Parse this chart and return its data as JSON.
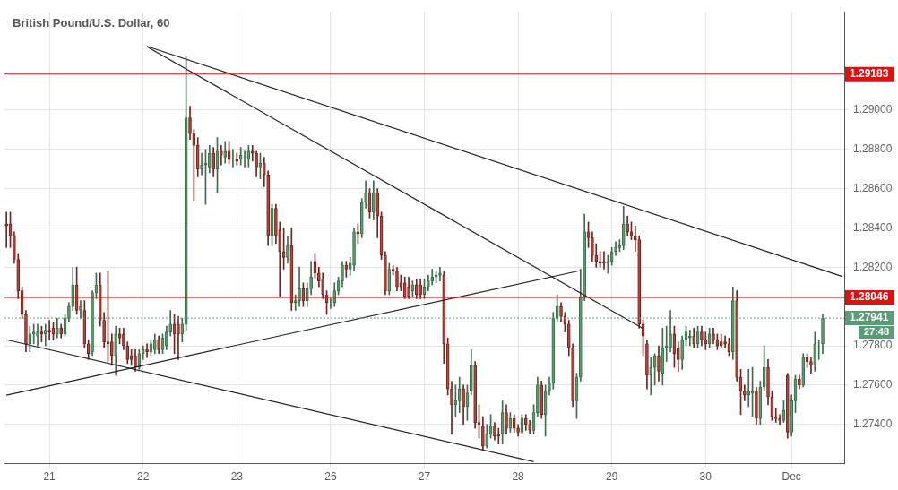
{
  "chart_data": {
    "type": "candlestick",
    "title": "British Pound/U.S. Dollar, 60",
    "categories": [
      null,
      null,
      null,
      null,
      null,
      null,
      null,
      null,
      null,
      null,
      null,
      "21",
      null,
      null,
      null,
      null,
      null,
      null,
      null,
      null,
      null,
      null,
      null,
      null,
      null,
      null,
      null,
      null,
      null,
      null,
      null,
      null,
      null,
      null,
      null,
      "22",
      null,
      null,
      null,
      null,
      null,
      null,
      null,
      null,
      null,
      null,
      null,
      null,
      null,
      null,
      null,
      null,
      null,
      null,
      null,
      null,
      null,
      null,
      null,
      "23",
      null,
      null,
      null,
      null,
      null,
      null,
      null,
      null,
      null,
      null,
      null,
      null,
      null,
      null,
      null,
      null,
      null,
      null,
      null,
      null,
      null,
      null,
      null,
      "26",
      null,
      null,
      null,
      null,
      null,
      null,
      null,
      null,
      null,
      null,
      null,
      null,
      null,
      null,
      null,
      null,
      null,
      null,
      null,
      null,
      null,
      null,
      null,
      "27",
      null,
      null,
      null,
      null,
      null,
      null,
      null,
      null,
      null,
      null,
      null,
      null,
      null,
      null,
      null,
      null,
      null,
      null,
      null,
      null,
      null,
      null,
      null,
      "28",
      null,
      null,
      null,
      null,
      null,
      null,
      null,
      null,
      null,
      null,
      null,
      null,
      null,
      null,
      null,
      null,
      null,
      null,
      null,
      null,
      null,
      null,
      null,
      "29",
      null,
      null,
      null,
      null,
      null,
      null,
      null,
      null,
      null,
      null,
      null,
      null,
      null,
      null,
      null,
      null,
      null,
      null,
      null,
      null,
      null,
      null,
      null,
      "30",
      null,
      null,
      null,
      null,
      null,
      null,
      null,
      null,
      null,
      null,
      null,
      null,
      null,
      null,
      null,
      null,
      null,
      null,
      null,
      null,
      null,
      "Dec",
      null,
      null,
      null,
      null,
      null,
      null,
      null,
      null,
      null,
      null,
      null,
      null,
      null
    ],
    "ohlc": [
      [
        1.2842,
        1.2848,
        1.283,
        1.2841
      ],
      [
        1.2842,
        1.2848,
        1.283,
        1.2836
      ],
      [
        1.2836,
        1.2838,
        1.2822,
        1.2824
      ],
      [
        1.2824,
        1.2827,
        1.2804,
        1.2808
      ],
      [
        1.2808,
        1.281,
        1.2794,
        1.2796
      ],
      [
        1.2796,
        1.2798,
        1.2777,
        1.2781
      ],
      [
        1.2781,
        1.279,
        1.2777,
        1.2786
      ],
      [
        1.2786,
        1.2791,
        1.2781,
        1.2787
      ],
      [
        1.2785,
        1.2791,
        1.278,
        1.2787
      ],
      [
        1.2787,
        1.279,
        1.2782,
        1.2786
      ],
      [
        1.2786,
        1.2791,
        1.278,
        1.2788
      ],
      [
        1.2788,
        1.2793,
        1.2783,
        1.2787
      ],
      [
        1.2789,
        1.2792,
        1.2783,
        1.2786
      ],
      [
        1.2786,
        1.2794,
        1.2784,
        1.2789
      ],
      [
        1.2789,
        1.2791,
        1.2784,
        1.2786
      ],
      [
        1.2786,
        1.2796,
        1.2785,
        1.2794
      ],
      [
        1.2794,
        1.2802,
        1.2792,
        1.28
      ],
      [
        1.28,
        1.282,
        1.2798,
        1.2811
      ],
      [
        1.2811,
        1.282,
        1.2796,
        1.2798
      ],
      [
        1.2798,
        1.2803,
        1.2794,
        1.28
      ],
      [
        1.2798,
        1.2803,
        1.2779,
        1.2781
      ],
      [
        1.2781,
        1.2783,
        1.2773,
        1.2776
      ],
      [
        1.2777,
        1.2808,
        1.2775,
        1.2807
      ],
      [
        1.2807,
        1.2817,
        1.2804,
        1.2811
      ],
      [
        1.2811,
        1.2817,
        1.279,
        1.2793
      ],
      [
        1.2793,
        1.2797,
        1.2779,
        1.2782
      ],
      [
        1.2782,
        1.2818,
        1.2772,
        1.2781
      ],
      [
        1.2782,
        1.2786,
        1.277,
        1.2775
      ],
      [
        1.2775,
        1.279,
        1.2765,
        1.2786
      ],
      [
        1.2786,
        1.2789,
        1.2781,
        1.2784
      ],
      [
        1.2786,
        1.2789,
        1.2778,
        1.278
      ],
      [
        1.278,
        1.2782,
        1.2771,
        1.2773
      ],
      [
        1.2775,
        1.2778,
        1.277,
        1.2773
      ],
      [
        1.2775,
        1.2778,
        1.2767,
        1.2769
      ],
      [
        1.2769,
        1.2778,
        1.2768,
        1.2776
      ],
      [
        1.2776,
        1.278,
        1.2773,
        1.2778
      ],
      [
        1.2778,
        1.2781,
        1.2774,
        1.2777
      ],
      [
        1.2777,
        1.2783,
        1.2775,
        1.2781
      ],
      [
        1.2778,
        1.2786,
        1.2776,
        1.2783
      ],
      [
        1.2783,
        1.2785,
        1.2776,
        1.2778
      ],
      [
        1.2778,
        1.2786,
        1.2776,
        1.2784
      ],
      [
        1.278,
        1.279,
        1.2778,
        1.2787
      ],
      [
        1.2787,
        1.2798,
        1.2785,
        1.2791
      ],
      [
        1.2791,
        1.2796,
        1.2776,
        1.2786
      ],
      [
        1.2791,
        1.2795,
        1.2773,
        1.2786
      ],
      [
        1.2786,
        1.2794,
        1.2782,
        1.2791
      ],
      [
        1.2791,
        1.2927,
        1.2788,
        1.2896
      ],
      [
        1.2896,
        1.2902,
        1.2885,
        1.2888
      ],
      [
        1.2888,
        1.289,
        1.2854,
        1.2882
      ],
      [
        1.2882,
        1.2886,
        1.2866,
        1.287
      ],
      [
        1.287,
        1.2878,
        1.2867,
        1.2872
      ],
      [
        1.2872,
        1.288,
        1.2852,
        1.2873
      ],
      [
        1.2871,
        1.2882,
        1.2868,
        1.2878
      ],
      [
        1.2878,
        1.2881,
        1.2866,
        1.287
      ],
      [
        1.287,
        1.2886,
        1.2858,
        1.2879
      ],
      [
        1.2879,
        1.2882,
        1.2872,
        1.2877
      ],
      [
        1.2876,
        1.2884,
        1.2873,
        1.2879
      ],
      [
        1.2879,
        1.2884,
        1.2873,
        1.2875
      ],
      [
        1.2875,
        1.288,
        1.2871,
        1.2875
      ],
      [
        1.2875,
        1.2878,
        1.2872,
        1.2874
      ],
      [
        1.2875,
        1.2881,
        1.2872,
        1.2877
      ],
      [
        1.2876,
        1.2879,
        1.2871,
        1.2876
      ],
      [
        1.2875,
        1.2882,
        1.2871,
        1.2879
      ],
      [
        1.2879,
        1.2882,
        1.2874,
        1.2878
      ],
      [
        1.2878,
        1.2879,
        1.2866,
        1.2871
      ],
      [
        1.2871,
        1.2878,
        1.2865,
        1.2873
      ],
      [
        1.2873,
        1.2876,
        1.2861,
        1.2867
      ],
      [
        1.2867,
        1.2869,
        1.2831,
        1.2836
      ],
      [
        1.2836,
        1.2852,
        1.2831,
        1.285
      ],
      [
        1.285,
        1.2852,
        1.2832,
        1.2836
      ],
      [
        1.2839,
        1.2843,
        1.2805,
        1.2828
      ],
      [
        1.2828,
        1.284,
        1.2819,
        1.2825
      ],
      [
        1.2825,
        1.2836,
        1.2822,
        1.2831
      ],
      [
        1.2831,
        1.284,
        1.2798,
        1.2802
      ],
      [
        1.2802,
        1.2806,
        1.2798,
        1.2803
      ],
      [
        1.2803,
        1.282,
        1.28,
        1.2809
      ],
      [
        1.2809,
        1.2812,
        1.28,
        1.2803
      ],
      [
        1.2803,
        1.2812,
        1.28,
        1.2809
      ],
      [
        1.2809,
        1.2823,
        1.2806,
        1.2815
      ],
      [
        1.2823,
        1.2827,
        1.2814,
        1.2817
      ],
      [
        1.2817,
        1.282,
        1.281,
        1.2813
      ],
      [
        1.2814,
        1.2817,
        1.2804,
        1.2806
      ],
      [
        1.2806,
        1.2808,
        1.2796,
        1.2802
      ],
      [
        1.2802,
        1.2804,
        1.2799,
        1.2802
      ],
      [
        1.2802,
        1.2812,
        1.28,
        1.2808
      ],
      [
        1.2808,
        1.2815,
        1.2806,
        1.2813
      ],
      [
        1.2813,
        1.2823,
        1.281,
        1.2821
      ],
      [
        1.2821,
        1.2823,
        1.2815,
        1.2819
      ],
      [
        1.2819,
        1.2825,
        1.2816,
        1.2822
      ],
      [
        1.2821,
        1.284,
        1.2818,
        1.2838
      ],
      [
        1.2838,
        1.2842,
        1.2832,
        1.2837
      ],
      [
        1.2837,
        1.2855,
        1.2835,
        1.2853
      ],
      [
        1.2853,
        1.2864,
        1.285,
        1.2858
      ],
      [
        1.2858,
        1.286,
        1.2845,
        1.2848
      ],
      [
        1.2848,
        1.2864,
        1.2844,
        1.2858
      ],
      [
        1.2858,
        1.286,
        1.2835,
        1.2846
      ],
      [
        1.2846,
        1.2848,
        1.2824,
        1.2826
      ],
      [
        1.2826,
        1.2828,
        1.2806,
        1.2808
      ],
      [
        1.2808,
        1.2822,
        1.2806,
        1.2819
      ],
      [
        1.2819,
        1.2821,
        1.2816,
        1.2818
      ],
      [
        1.2818,
        1.282,
        1.2808,
        1.281
      ],
      [
        1.2812,
        1.2816,
        1.2808,
        1.281
      ],
      [
        1.2812,
        1.2815,
        1.2804,
        1.2805
      ],
      [
        1.281,
        1.2815,
        1.2804,
        1.2805
      ],
      [
        1.2808,
        1.2813,
        1.2805,
        1.2811
      ],
      [
        1.2811,
        1.2814,
        1.2804,
        1.2806
      ],
      [
        1.2811,
        1.2814,
        1.2804,
        1.2806
      ],
      [
        1.2806,
        1.2814,
        1.2804,
        1.281
      ],
      [
        1.281,
        1.2816,
        1.2808,
        1.2813
      ],
      [
        1.2813,
        1.2819,
        1.2811,
        1.2815
      ],
      [
        1.2815,
        1.2818,
        1.2812,
        1.2816
      ],
      [
        1.2816,
        1.282,
        1.2813,
        1.2817
      ],
      [
        1.2816,
        1.2818,
        1.2771,
        1.2781
      ],
      [
        1.2781,
        1.2784,
        1.2755,
        1.2758
      ],
      [
        1.2758,
        1.2762,
        1.2735,
        1.275
      ],
      [
        1.275,
        1.276,
        1.2744,
        1.2752
      ],
      [
        1.2752,
        1.2764,
        1.2746,
        1.2758
      ],
      [
        1.2758,
        1.276,
        1.274,
        1.2749
      ],
      [
        1.2749,
        1.276,
        1.2742,
        1.2756
      ],
      [
        1.2757,
        1.2778,
        1.2755,
        1.277
      ],
      [
        1.277,
        1.2772,
        1.2738,
        1.2741
      ],
      [
        1.2741,
        1.275,
        1.2733,
        1.274
      ],
      [
        1.2739,
        1.2744,
        1.2727,
        1.2729
      ],
      [
        1.2729,
        1.274,
        1.2728,
        1.2735
      ],
      [
        1.2735,
        1.2745,
        1.2733,
        1.2739
      ],
      [
        1.2739,
        1.2741,
        1.2732,
        1.2734
      ],
      [
        1.2735,
        1.2738,
        1.273,
        1.2734
      ],
      [
        1.2735,
        1.2752,
        1.273,
        1.2746
      ],
      [
        1.2746,
        1.275,
        1.2735,
        1.2738
      ],
      [
        1.2738,
        1.2746,
        1.2736,
        1.2743
      ],
      [
        1.2743,
        1.2745,
        1.2736,
        1.2738
      ],
      [
        1.2738,
        1.274,
        1.2734,
        1.2736
      ],
      [
        1.2736,
        1.2745,
        1.2735,
        1.2743
      ],
      [
        1.2743,
        1.2745,
        1.2737,
        1.274
      ],
      [
        1.274,
        1.2742,
        1.2735,
        1.2737
      ],
      [
        1.2737,
        1.275,
        1.2735,
        1.2746
      ],
      [
        1.2746,
        1.2764,
        1.2744,
        1.276
      ],
      [
        1.276,
        1.2762,
        1.2743,
        1.2745
      ],
      [
        1.2745,
        1.276,
        1.2734,
        1.2757
      ],
      [
        1.2757,
        1.2764,
        1.2755,
        1.2761
      ],
      [
        1.2761,
        1.2797,
        1.2758,
        1.2794
      ],
      [
        1.2794,
        1.2806,
        1.2792,
        1.28
      ],
      [
        1.28,
        1.2802,
        1.2792,
        1.2795
      ],
      [
        1.2795,
        1.2797,
        1.2787,
        1.2791
      ],
      [
        1.2791,
        1.2793,
        1.2775,
        1.2779
      ],
      [
        1.2779,
        1.2781,
        1.2749,
        1.2752
      ],
      [
        1.2752,
        1.2766,
        1.2743,
        1.2764
      ],
      [
        1.2764,
        1.2819,
        1.2762,
        1.2805
      ],
      [
        1.2805,
        1.2847,
        1.2803,
        1.2838
      ],
      [
        1.2838,
        1.2843,
        1.283,
        1.2835
      ],
      [
        1.2835,
        1.2838,
        1.2823,
        1.2826
      ],
      [
        1.2826,
        1.2832,
        1.282,
        1.2823
      ],
      [
        1.2823,
        1.2828,
        1.282,
        1.2822
      ],
      [
        1.2823,
        1.2828,
        1.2819,
        1.2822
      ],
      [
        1.2822,
        1.2826,
        1.2817,
        1.2823
      ],
      [
        1.2823,
        1.283,
        1.2821,
        1.2828
      ],
      [
        1.2828,
        1.2833,
        1.2826,
        1.283
      ],
      [
        1.283,
        1.2834,
        1.2828,
        1.2831
      ],
      [
        1.2831,
        1.2851,
        1.2829,
        1.2842
      ],
      [
        1.2842,
        1.2846,
        1.2836,
        1.2838
      ],
      [
        1.2838,
        1.2843,
        1.2834,
        1.2836
      ],
      [
        1.2836,
        1.2841,
        1.2828,
        1.2834
      ],
      [
        1.2834,
        1.2836,
        1.2789,
        1.2791
      ],
      [
        1.2791,
        1.2793,
        1.2775,
        1.2785
      ],
      [
        1.2781,
        1.2783,
        1.2758,
        1.2765
      ],
      [
        1.2765,
        1.2774,
        1.2755,
        1.2769
      ],
      [
        1.2769,
        1.2776,
        1.276,
        1.2775
      ],
      [
        1.2775,
        1.278,
        1.2762,
        1.2767
      ],
      [
        1.2766,
        1.2789,
        1.276,
        1.2779
      ],
      [
        1.2779,
        1.279,
        1.2772,
        1.278
      ],
      [
        1.2779,
        1.2798,
        1.2777,
        1.2786
      ],
      [
        1.2786,
        1.279,
        1.2769,
        1.2776
      ],
      [
        1.2779,
        1.2782,
        1.2767,
        1.2773
      ],
      [
        1.2773,
        1.2785,
        1.2768,
        1.2783
      ],
      [
        1.2783,
        1.279,
        1.278,
        1.2787
      ],
      [
        1.2784,
        1.2788,
        1.278,
        1.2785
      ],
      [
        1.2785,
        1.2789,
        1.2779,
        1.2781
      ],
      [
        1.2781,
        1.279,
        1.2779,
        1.2787
      ],
      [
        1.2787,
        1.279,
        1.278,
        1.2783
      ],
      [
        1.2783,
        1.2787,
        1.2778,
        1.2781
      ],
      [
        1.2781,
        1.2789,
        1.2779,
        1.2786
      ],
      [
        1.2786,
        1.2789,
        1.2781,
        1.2783
      ],
      [
        1.2783,
        1.2786,
        1.2778,
        1.278
      ],
      [
        1.2782,
        1.2786,
        1.2779,
        1.278
      ],
      [
        1.2782,
        1.2785,
        1.2779,
        1.2781
      ],
      [
        1.2781,
        1.2784,
        1.2775,
        1.2777
      ],
      [
        1.2777,
        1.281,
        1.2773,
        1.2803
      ],
      [
        1.2803,
        1.2808,
        1.2762,
        1.2764
      ],
      [
        1.2764,
        1.2768,
        1.2745,
        1.2757
      ],
      [
        1.2757,
        1.276,
        1.2752,
        1.2755
      ],
      [
        1.2755,
        1.2768,
        1.2749,
        1.2757
      ],
      [
        1.2756,
        1.2769,
        1.2744,
        1.2757
      ],
      [
        1.2757,
        1.2759,
        1.274,
        1.2743
      ],
      [
        1.2743,
        1.2762,
        1.274,
        1.2759
      ],
      [
        1.2759,
        1.278,
        1.2757,
        1.2769
      ],
      [
        1.2769,
        1.2773,
        1.275,
        1.2754
      ],
      [
        1.2754,
        1.2757,
        1.2742,
        1.2744
      ],
      [
        1.2744,
        1.2748,
        1.2741,
        1.2743
      ],
      [
        1.2743,
        1.2745,
        1.274,
        1.2742
      ],
      [
        1.2742,
        1.2752,
        1.2741,
        1.2747
      ],
      [
        1.2765,
        1.2766,
        1.2733,
        1.2736
      ],
      [
        1.2736,
        1.2755,
        1.2734,
        1.2752
      ],
      [
        1.2752,
        1.2765,
        1.2746,
        1.2763
      ],
      [
        1.2763,
        1.2765,
        1.2758,
        1.276
      ],
      [
        1.276,
        1.2776,
        1.2759,
        1.2774
      ],
      [
        1.2774,
        1.2776,
        1.2769,
        1.2772
      ],
      [
        1.2772,
        1.2774,
        1.2766,
        1.277
      ],
      [
        1.277,
        1.2787,
        1.2767,
        1.2781
      ],
      [
        1.2781,
        1.2783,
        1.2773,
        1.2781
      ],
      [
        1.2781,
        1.2796,
        1.2776,
        1.2794
      ],
      null,
      null,
      null,
      null,
      null
    ],
    "series": [
      {
        "type": "line",
        "color": "#222222",
        "values": [
          null,
          null,
          null,
          null,
          null,
          null,
          null,
          null,
          null,
          null,
          null,
          null,
          null,
          null,
          null,
          null,
          null,
          null,
          null,
          null,
          null,
          null,
          null,
          null,
          null,
          null,
          null,
          null,
          null,
          null,
          null,
          null,
          null,
          null,
          null,
          null,
          1.29324,
          null,
          null,
          null,
          null,
          null,
          null,
          null,
          null,
          null,
          null,
          null,
          null,
          null,
          null,
          null,
          null,
          null,
          null,
          null,
          null,
          null,
          null,
          null,
          null,
          null,
          null,
          null,
          null,
          null,
          null,
          null,
          null,
          null,
          null,
          null,
          null,
          null,
          null,
          null,
          null,
          null,
          null,
          null,
          null,
          null,
          null,
          null,
          null,
          null,
          null,
          null,
          null,
          null,
          null,
          null,
          null,
          null,
          null,
          null,
          null,
          null,
          null,
          null,
          null,
          null,
          null,
          null,
          null,
          null,
          null,
          null,
          null,
          null,
          null,
          null,
          null,
          null,
          null,
          null,
          null,
          null,
          null,
          null,
          null,
          null,
          null,
          null,
          null,
          null,
          null,
          null,
          null,
          null,
          null,
          null,
          null,
          null,
          null,
          null,
          null,
          null,
          null,
          null,
          null,
          null,
          null,
          null,
          null,
          null,
          null,
          null,
          null,
          null,
          null,
          null,
          null,
          null,
          null,
          null,
          null,
          null,
          null,
          null,
          null,
          null,
          null,
          null,
          null,
          null,
          null,
          null,
          null,
          null,
          null,
          null,
          null,
          null,
          null,
          null,
          null,
          null,
          null,
          null,
          null,
          null,
          null,
          null,
          null,
          null,
          null,
          null,
          null,
          null,
          null,
          null,
          null,
          null,
          null,
          null,
          null,
          null,
          null,
          null,
          null,
          null,
          null,
          null,
          null,
          null,
          null,
          null,
          null,
          null,
          null,
          null,
          null,
          null,
          1.28153
        ]
      },
      {
        "type": "line",
        "color": "#222222",
        "values": [
          null,
          null,
          null,
          null,
          null,
          null,
          null,
          null,
          null,
          null,
          null,
          null,
          null,
          null,
          null,
          null,
          null,
          null,
          null,
          null,
          null,
          null,
          null,
          null,
          null,
          null,
          null,
          null,
          null,
          null,
          null,
          null,
          null,
          null,
          null,
          null,
          1.29322,
          null,
          null,
          null,
          null,
          null,
          null,
          null,
          null,
          null,
          null,
          null,
          null,
          null,
          null,
          null,
          null,
          null,
          null,
          null,
          null,
          null,
          null,
          null,
          null,
          null,
          null,
          null,
          null,
          null,
          null,
          null,
          null,
          null,
          null,
          null,
          null,
          null,
          null,
          null,
          null,
          null,
          null,
          null,
          null,
          null,
          null,
          null,
          null,
          null,
          null,
          null,
          null,
          null,
          null,
          null,
          null,
          null,
          null,
          null,
          null,
          null,
          null,
          null,
          null,
          null,
          null,
          null,
          null,
          null,
          null,
          null,
          null,
          null,
          null,
          null,
          null,
          null,
          null,
          null,
          null,
          null,
          null,
          null,
          null,
          null,
          null,
          null,
          null,
          null,
          null,
          null,
          null,
          null,
          null,
          null,
          null,
          null,
          null,
          null,
          null,
          null,
          null,
          null,
          null,
          null,
          null,
          null,
          null,
          null,
          null,
          null,
          null,
          null,
          null,
          null,
          null,
          null,
          null,
          null,
          null,
          null,
          null,
          null,
          null,
          null,
          null,
          1.27888,
          null,
          null,
          null,
          null,
          null,
          null,
          null,
          null,
          null,
          null,
          null,
          null,
          null,
          null,
          null,
          null,
          null,
          null,
          null,
          null,
          null,
          null,
          null,
          null,
          null,
          null,
          null,
          null,
          null,
          null,
          null,
          null,
          null,
          null,
          null,
          null,
          null,
          null,
          null,
          null,
          null,
          null,
          null,
          null,
          null,
          null,
          null,
          null,
          null,
          null,
          null
        ]
      },
      {
        "type": "line",
        "color": "#222222",
        "values": [
          1.27831,
          null,
          null,
          null,
          null,
          null,
          null,
          null,
          null,
          null,
          null,
          null,
          null,
          null,
          null,
          null,
          null,
          null,
          null,
          null,
          null,
          null,
          null,
          null,
          null,
          null,
          null,
          null,
          null,
          null,
          null,
          null,
          null,
          null,
          null,
          null,
          null,
          null,
          null,
          null,
          null,
          null,
          null,
          null,
          null,
          null,
          null,
          null,
          null,
          null,
          null,
          null,
          null,
          null,
          null,
          null,
          null,
          null,
          null,
          null,
          null,
          null,
          null,
          null,
          null,
          null,
          null,
          null,
          null,
          null,
          null,
          null,
          null,
          null,
          null,
          null,
          null,
          null,
          null,
          null,
          null,
          null,
          null,
          null,
          null,
          null,
          null,
          null,
          null,
          null,
          null,
          null,
          null,
          null,
          null,
          null,
          null,
          null,
          null,
          null,
          null,
          null,
          null,
          null,
          null,
          null,
          null,
          null,
          null,
          null,
          null,
          null,
          null,
          null,
          null,
          null,
          null,
          null,
          null,
          null,
          null,
          null,
          null,
          null,
          null,
          null,
          null,
          null,
          null,
          null,
          null,
          null,
          null,
          null,
          null,
          1.2721,
          null,
          null,
          null,
          null,
          null,
          null,
          null,
          null,
          null,
          null,
          null,
          null,
          null,
          null,
          null,
          null,
          null,
          null,
          null,
          null,
          null,
          null,
          null,
          null,
          null,
          null,
          null,
          null,
          null,
          null,
          null,
          null,
          null,
          null,
          null,
          null,
          null,
          null,
          null,
          null,
          null,
          null,
          null,
          null,
          null,
          null,
          null,
          null,
          null,
          null,
          null,
          null,
          null,
          null,
          null,
          null,
          null,
          null,
          null,
          null,
          null,
          null,
          null,
          null,
          null,
          null,
          null,
          null,
          null,
          null,
          null,
          null,
          null,
          null,
          null,
          null,
          null,
          null,
          null
        ]
      },
      {
        "type": "line",
        "color": "#222222",
        "values": [
          1.27549,
          null,
          null,
          null,
          null,
          null,
          null,
          null,
          null,
          null,
          null,
          null,
          null,
          null,
          null,
          null,
          null,
          null,
          null,
          null,
          null,
          null,
          null,
          null,
          null,
          null,
          null,
          null,
          null,
          null,
          null,
          null,
          null,
          null,
          null,
          null,
          null,
          null,
          null,
          null,
          null,
          null,
          null,
          null,
          null,
          null,
          null,
          null,
          null,
          null,
          null,
          null,
          null,
          null,
          null,
          null,
          null,
          null,
          null,
          null,
          null,
          null,
          null,
          null,
          null,
          null,
          null,
          null,
          null,
          null,
          null,
          null,
          null,
          null,
          null,
          null,
          null,
          null,
          null,
          null,
          null,
          null,
          null,
          null,
          null,
          null,
          null,
          null,
          null,
          null,
          null,
          null,
          null,
          null,
          null,
          null,
          null,
          null,
          null,
          null,
          null,
          null,
          null,
          null,
          null,
          null,
          null,
          null,
          null,
          null,
          null,
          null,
          null,
          null,
          null,
          null,
          null,
          null,
          null,
          null,
          null,
          null,
          null,
          null,
          null,
          null,
          null,
          null,
          null,
          null,
          null,
          null,
          null,
          null,
          null,
          null,
          null,
          null,
          null,
          null,
          null,
          null,
          null,
          null,
          null,
          null,
          null,
          1.28183,
          null,
          null,
          null,
          null,
          null,
          null,
          null,
          null,
          null,
          null,
          null,
          null,
          null,
          null,
          null,
          null,
          null,
          null,
          null,
          null,
          null,
          null,
          null,
          null,
          null,
          null,
          null,
          null,
          null,
          null,
          null,
          null,
          null,
          null,
          null,
          null,
          null,
          null,
          null,
          null,
          null,
          null,
          null,
          null,
          null,
          null,
          null,
          null,
          null,
          null,
          null,
          null,
          null,
          null,
          null,
          null,
          null,
          null,
          null,
          null,
          null,
          null,
          null,
          null,
          null,
          null,
          null
        ]
      }
    ],
    "ylim": [
      1.272,
      1.295
    ],
    "yticks": [
      {
        "value": 1.274,
        "label": "1.27400"
      },
      {
        "value": 1.276,
        "label": "1.27600"
      },
      {
        "value": 1.278,
        "label": "1.27800"
      },
      {
        "value": 1.282,
        "label": "1.28200"
      },
      {
        "value": 1.284,
        "label": "1.28400"
      },
      {
        "value": 1.286,
        "label": "1.28600"
      },
      {
        "value": 1.288,
        "label": "1.28800"
      },
      {
        "value": 1.29,
        "label": "1.29000"
      }
    ],
    "ref_lines": [
      {
        "axis": "y",
        "value": 1.29183,
        "label": "1.29183",
        "color": "#e01010"
      },
      {
        "axis": "y",
        "value": 1.28046,
        "label": "1.28046",
        "color": "#e01010"
      },
      {
        "axis": "y",
        "value": 1.27941,
        "label": "1.27941",
        "color": "#5a9c78",
        "line_style": "dotted"
      }
    ],
    "annotations": [
      "27:48"
    ],
    "grid": true,
    "legend": false
  }
}
